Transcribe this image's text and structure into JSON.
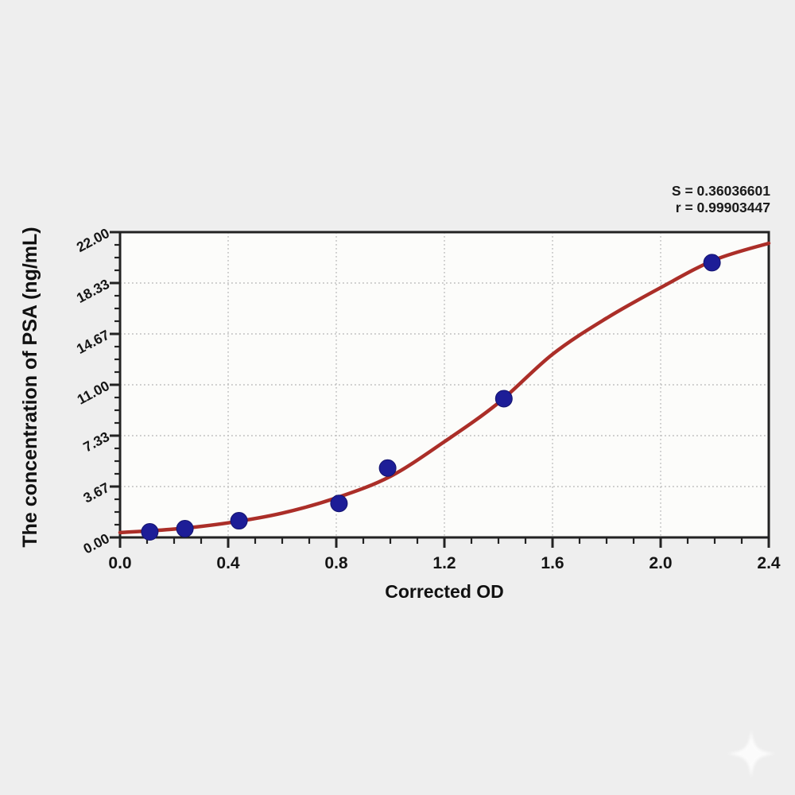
{
  "chart_data": {
    "type": "scatter",
    "title": "",
    "xlabel": "Corrected OD",
    "ylabel": "The concentration of PSA (ng/mL)",
    "xlim": [
      0,
      2.4
    ],
    "ylim": [
      0,
      22
    ],
    "grid": "dotted",
    "legend": "none",
    "x_ticks": {
      "values": [
        0,
        0.4,
        0.8,
        1.2,
        1.6,
        2.0,
        2.4
      ],
      "labels": [
        "0.0",
        "0.4",
        "0.8",
        "1.2",
        "1.6",
        "2.0",
        "2.4"
      ],
      "minor_divisions": 4
    },
    "y_ticks": {
      "values": [
        0,
        3.6667,
        7.3333,
        11,
        14.6667,
        18.3333,
        22
      ],
      "labels": [
        "0.00",
        "3.67",
        "7.33",
        "11.00",
        "14.67",
        "18.33",
        "22.00"
      ],
      "minor_divisions": 4
    },
    "series": [
      {
        "name": "standard-points",
        "type": "scatter",
        "x": [
          0.11,
          0.24,
          0.44,
          0.81,
          0.99,
          1.42,
          2.19
        ],
        "y": [
          0.4,
          0.63,
          1.2,
          2.45,
          5.0,
          10.0,
          19.8
        ]
      },
      {
        "name": "4pl-fit-curve",
        "type": "line",
        "x": [
          0,
          0.2,
          0.4,
          0.6,
          0.8,
          1.0,
          1.2,
          1.4,
          1.6,
          1.8,
          2.0,
          2.2,
          2.4
        ],
        "y": [
          0.35,
          0.6,
          1.05,
          1.75,
          2.85,
          4.4,
          6.9,
          9.7,
          13.2,
          15.8,
          18.0,
          20.0,
          21.2
        ]
      }
    ],
    "annotations": [
      {
        "text": "S = 0.36036601"
      },
      {
        "text": "r = 0.99903447"
      }
    ],
    "colors": {
      "curve": "#ab2e28",
      "points": "#1d1d97",
      "points_edge": "#13136e",
      "grid": "#bcbcbc",
      "axis": "#222222",
      "plot_bg": "#fcfcfa",
      "page_bg": "#eeeeee",
      "text": "#151515"
    }
  },
  "watermark": {
    "shape": "four-point-star",
    "color": "#ffffff"
  }
}
